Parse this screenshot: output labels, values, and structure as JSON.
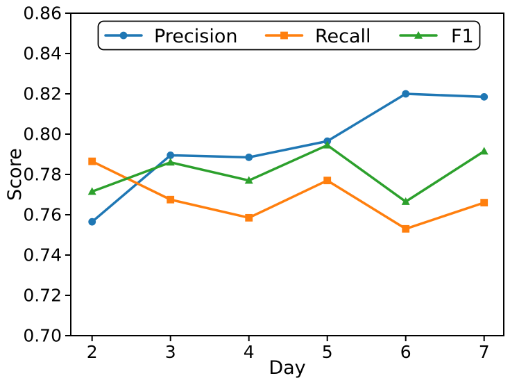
{
  "figure": {
    "background": "#ffffff",
    "frame_color": "#000000",
    "text_color": "#000000"
  },
  "chart_data": {
    "type": "line",
    "title": "",
    "xlabel": "Day",
    "ylabel": "Score",
    "x": [
      2,
      3,
      4,
      5,
      6,
      7
    ],
    "x_tick_labels": [
      "2",
      "3",
      "4",
      "5",
      "6",
      "7"
    ],
    "y_tick_labels": [
      "0.70",
      "0.72",
      "0.74",
      "0.76",
      "0.78",
      "0.80",
      "0.82",
      "0.84",
      "0.86"
    ],
    "xlim": [
      1.73,
      7.25
    ],
    "ylim": [
      0.7,
      0.86
    ],
    "grid": false,
    "legend_position": "upper center",
    "series": [
      {
        "name": "Precision",
        "color": "#1f77b4",
        "marker": "circle",
        "values": [
          0.7565,
          0.7895,
          0.7885,
          0.7965,
          0.82,
          0.8185
        ]
      },
      {
        "name": "Recall",
        "color": "#ff7f0e",
        "marker": "square",
        "values": [
          0.7865,
          0.7675,
          0.7585,
          0.777,
          0.753,
          0.766
        ]
      },
      {
        "name": "F1",
        "color": "#2ca02c",
        "marker": "triangle",
        "values": [
          0.7715,
          0.786,
          0.777,
          0.7945,
          0.7665,
          0.7915
        ]
      }
    ]
  }
}
